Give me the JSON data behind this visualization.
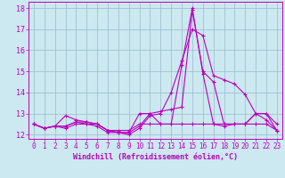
{
  "title": "",
  "xlabel": "Windchill (Refroidissement éolien,°C)",
  "ylabel": "",
  "bg_color": "#cce8f0",
  "line_color": "#bb00bb",
  "grid_color": "#99bbcc",
  "xlim": [
    -0.5,
    23.5
  ],
  "ylim": [
    11.8,
    18.3
  ],
  "yticks": [
    12,
    13,
    14,
    15,
    16,
    17,
    18
  ],
  "xticks": [
    0,
    1,
    2,
    3,
    4,
    5,
    6,
    7,
    8,
    9,
    10,
    11,
    12,
    13,
    14,
    15,
    16,
    17,
    18,
    19,
    20,
    21,
    22,
    23
  ],
  "series": [
    [
      12.5,
      12.3,
      12.4,
      12.3,
      12.5,
      12.5,
      12.4,
      12.1,
      12.1,
      12.0,
      12.3,
      12.9,
      13.0,
      14.0,
      15.5,
      17.0,
      16.7,
      14.8,
      14.6,
      14.4,
      13.9,
      13.0,
      12.7,
      12.2
    ],
    [
      12.5,
      12.3,
      12.4,
      12.4,
      12.6,
      12.5,
      12.5,
      12.2,
      12.1,
      12.1,
      12.4,
      13.0,
      13.1,
      13.2,
      13.3,
      17.9,
      15.0,
      14.5,
      12.5,
      12.5,
      12.5,
      12.5,
      12.5,
      12.2
    ],
    [
      12.5,
      12.3,
      12.4,
      12.9,
      12.7,
      12.6,
      12.5,
      12.2,
      12.1,
      12.1,
      13.0,
      13.0,
      12.5,
      12.5,
      15.3,
      18.0,
      14.9,
      12.5,
      12.4,
      12.5,
      12.5,
      13.0,
      13.0,
      12.5
    ],
    [
      12.5,
      12.3,
      12.4,
      12.4,
      12.6,
      12.6,
      12.5,
      12.2,
      12.2,
      12.2,
      12.5,
      12.5,
      12.5,
      12.5,
      12.5,
      12.5,
      12.5,
      12.5,
      12.5,
      12.5,
      12.5,
      13.0,
      13.0,
      12.2
    ]
  ],
  "tick_fontsize": 5.5,
  "xlabel_fontsize": 6.0,
  "marker": "+",
  "markersize": 3,
  "linewidth": 0.8
}
